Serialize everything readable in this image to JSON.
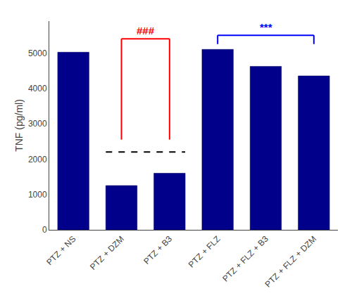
{
  "chart_data": {
    "type": "bar",
    "categories": [
      "PTZ + NS",
      "PTZ + DZM",
      "PTZ + B3",
      "PTZ + FLZ",
      "PTZ + FLZ + B3",
      "PTZ + FLZ + DZM"
    ],
    "values": [
      5020,
      1250,
      1600,
      5100,
      4620,
      4350
    ],
    "color": "#00008B",
    "ylabel": "TNF (pg/ml)",
    "ylim": [
      0,
      5900
    ],
    "yticks": [
      0,
      1000,
      2000,
      3000,
      4000,
      5000
    ],
    "grid": false,
    "annotations": [
      {
        "type": "line",
        "from": "PTZ + DZM",
        "to": "PTZ + B3",
        "y": 2200,
        "color": "black",
        "line_style": "dashed"
      },
      {
        "type": "bracket",
        "text": "###",
        "color": "red",
        "from": "PTZ + DZM",
        "to": "PTZ + B3",
        "y_top": 5400,
        "y_bottom": 2550
      },
      {
        "type": "bracket",
        "text": "***",
        "color": "blue",
        "from": "PTZ + FLZ",
        "to": "PTZ + FLZ + DZM",
        "y_top": 5500,
        "y_bottom": 5250
      }
    ]
  }
}
